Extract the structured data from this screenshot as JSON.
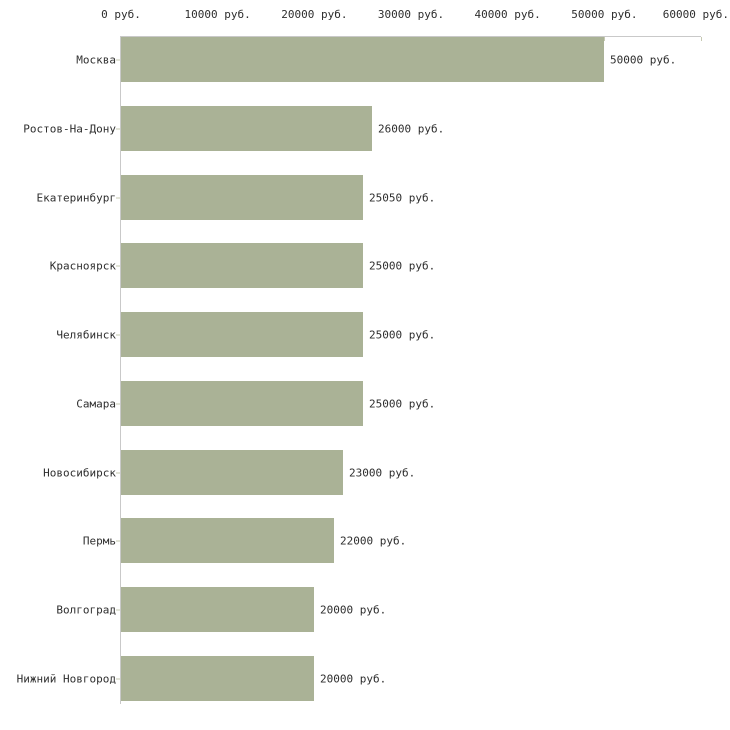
{
  "chart_data": {
    "type": "bar",
    "orientation": "horizontal",
    "title": "",
    "xlabel": "",
    "ylabel": "",
    "grid": false,
    "legend": "none",
    "unit": "руб.",
    "xlim": [
      0,
      60000
    ],
    "x_ticks": [
      {
        "value": 0,
        "label": "0 руб."
      },
      {
        "value": 10000,
        "label": "10000 руб."
      },
      {
        "value": 20000,
        "label": "20000 руб."
      },
      {
        "value": 30000,
        "label": "30000 руб."
      },
      {
        "value": 40000,
        "label": "40000 руб."
      },
      {
        "value": 50000,
        "label": "50000 руб."
      },
      {
        "value": 60000,
        "label": "60000 руб."
      }
    ],
    "categories": [
      "Москва",
      "Ростов-На-Дону",
      "Екатеринбург",
      "Красноярск",
      "Челябинск",
      "Самара",
      "Новосибирск",
      "Пермь",
      "Волгоград",
      "Нижний Новгород"
    ],
    "values": [
      50000,
      26000,
      25050,
      25000,
      25000,
      25000,
      23000,
      22000,
      20000,
      20000
    ],
    "value_labels": [
      "50000 руб.",
      "26000 руб.",
      "25050 руб.",
      "25000 руб.",
      "25000 руб.",
      "25000 руб.",
      "23000 руб.",
      "22000 руб.",
      "20000 руб.",
      "20000 руб."
    ],
    "colors": {
      "bar": "#aab296",
      "axis": "#c9c9c9",
      "tick": "#c6c9b2",
      "text": "#2e2e2e",
      "background": "#ffffff"
    }
  }
}
